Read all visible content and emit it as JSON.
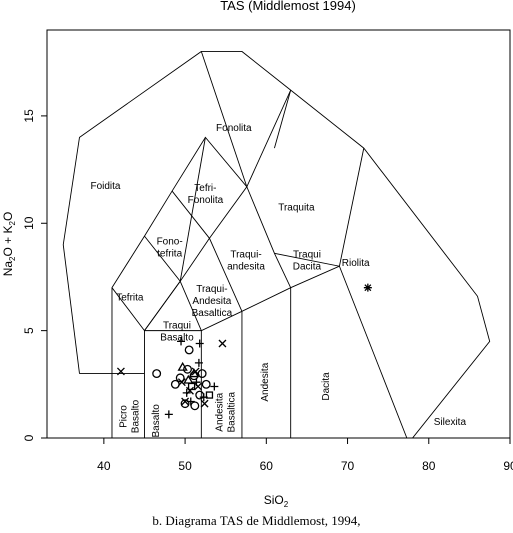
{
  "chart_data": {
    "type": "scatter",
    "title": "TAS (Middlemost 1994)",
    "xlabel_main": "SiO",
    "xlabel_sub": "2",
    "ylabel_parts": [
      "Na",
      "2",
      "O + K",
      "2",
      "O"
    ],
    "xlim": [
      33,
      90
    ],
    "ylim": [
      0,
      19
    ],
    "xticks": [
      "40",
      "50",
      "60",
      "70",
      "80",
      "90"
    ],
    "yticks": [
      "0",
      "5",
      "10",
      "15"
    ],
    "regions": [
      {
        "name": "Foidita",
        "lines": [
          "Foidita"
        ],
        "at": [
          40.2,
          11.6
        ]
      },
      {
        "name": "Fonolita",
        "lines": [
          "Fonolita"
        ],
        "at": [
          56.0,
          14.3
        ]
      },
      {
        "name": "Tefri-Fonolita",
        "lines": [
          "Tefri-",
          "Fonolita"
        ],
        "at": [
          52.5,
          11.5
        ]
      },
      {
        "name": "Traquita",
        "lines": [
          "Traquita"
        ],
        "at": [
          63.7,
          10.6
        ]
      },
      {
        "name": "Fono-tefrita",
        "lines": [
          "Fono-",
          "tefrita"
        ],
        "at": [
          48.1,
          9.0
        ]
      },
      {
        "name": "Traqui-andesita",
        "lines": [
          "Traqui-",
          "andesita"
        ],
        "at": [
          57.5,
          8.4
        ]
      },
      {
        "name": "Traqui Dacita",
        "lines": [
          "Traqui",
          "Dacita"
        ],
        "at": [
          65.0,
          8.4
        ]
      },
      {
        "name": "Riolita",
        "lines": [
          "Riolita"
        ],
        "at": [
          71.0,
          8.0
        ]
      },
      {
        "name": "Tefrita",
        "lines": [
          "Tefrita"
        ],
        "at": [
          43.2,
          6.4
        ]
      },
      {
        "name": "Traqui-Andesita Basaltica",
        "lines": [
          "Traqui-",
          "Andesita",
          "Basaltica"
        ],
        "at": [
          53.3,
          6.8
        ]
      },
      {
        "name": "Traqui Basalto",
        "lines": [
          "Traqui",
          "Basalto"
        ],
        "at": [
          49.0,
          5.1
        ]
      },
      {
        "name": "Andesita",
        "lines": [
          "Andesita"
        ],
        "at": [
          60.2,
          2.6
        ],
        "rotate": -90
      },
      {
        "name": "Dacita",
        "lines": [
          "Dacita"
        ],
        "at": [
          67.7,
          2.4
        ],
        "rotate": -90
      },
      {
        "name": "Silexita",
        "lines": [
          "Silexita"
        ],
        "at": [
          82.6,
          0.6
        ]
      },
      {
        "name": "Picro Basalto",
        "lines": [
          "Picro",
          "Basalto"
        ],
        "at": [
          42.8,
          1.0
        ],
        "rotate": -90
      },
      {
        "name": "Basalto",
        "lines": [
          "Basalto"
        ],
        "at": [
          46.8,
          0.8
        ],
        "rotate": -90
      },
      {
        "name": "Andesita Basaltica",
        "lines": [
          "Andesita",
          "Basaltica"
        ],
        "at": [
          54.6,
          1.2
        ],
        "rotate": -90
      }
    ],
    "boundaries": [
      [
        [
          37.0,
          3.0
        ],
        [
          35.0,
          9.0
        ],
        [
          37.0,
          14.0
        ],
        [
          52.0,
          18.0
        ],
        [
          57.0,
          18.0
        ],
        [
          63.0,
          16.2
        ],
        [
          72.0,
          13.5
        ],
        [
          86.0,
          6.6
        ],
        [
          87.5,
          4.5
        ],
        [
          78.0,
          0.0
        ],
        [
          41.0,
          0.0
        ],
        [
          41.0,
          3.0
        ],
        [
          37.0,
          3.0
        ]
      ],
      [
        [
          41.0,
          3.0
        ],
        [
          45.0,
          3.0
        ]
      ],
      [
        [
          41.0,
          3.0
        ],
        [
          41.0,
          7.0
        ],
        [
          45.0,
          9.4
        ],
        [
          48.4,
          11.5
        ],
        [
          52.5,
          14.0
        ],
        [
          57.6,
          11.7
        ],
        [
          63.0,
          16.2
        ]
      ],
      [
        [
          45.0,
          0.0
        ],
        [
          45.0,
          5.0
        ],
        [
          52.0,
          5.0
        ],
        [
          57.0,
          5.9
        ],
        [
          63.0,
          7.0
        ],
        [
          69.0,
          8.0
        ],
        [
          72.0,
          13.5
        ]
      ],
      [
        [
          52.0,
          0.0
        ],
        [
          52.0,
          5.0
        ],
        [
          49.4,
          7.3
        ],
        [
          53.0,
          9.3
        ],
        [
          57.6,
          11.7
        ],
        [
          52.0,
          18.0
        ]
      ],
      [
        [
          45.0,
          9.4
        ],
        [
          49.4,
          7.3
        ],
        [
          45.0,
          5.0
        ],
        [
          41.0,
          7.0
        ]
      ],
      [
        [
          48.4,
          11.5
        ],
        [
          53.0,
          9.3
        ],
        [
          57.0,
          5.9
        ],
        [
          57.0,
          0.0
        ]
      ],
      [
        [
          57.6,
          11.7
        ],
        [
          61.0,
          8.6
        ],
        [
          63.0,
          7.0
        ],
        [
          63.0,
          0.0
        ]
      ],
      [
        [
          61.0,
          8.6
        ],
        [
          69.0,
          8.0
        ],
        [
          77.3,
          0.0
        ]
      ],
      [
        [
          45.0,
          5.0
        ],
        [
          49.4,
          7.3
        ]
      ],
      [
        [
          63.0,
          16.2
        ],
        [
          61.0,
          13.5
        ]
      ],
      [
        [
          52.5,
          14.0
        ],
        [
          49.4,
          7.3
        ]
      ]
    ],
    "series": [
      {
        "marker": "circle",
        "points": [
          [
            50.5,
            4.1
          ],
          [
            46.5,
            3.0
          ],
          [
            48.8,
            2.5
          ],
          [
            49.4,
            2.8
          ],
          [
            50.3,
            3.2
          ],
          [
            51.1,
            2.9
          ],
          [
            51.8,
            2.0
          ],
          [
            50.0,
            1.6
          ],
          [
            51.2,
            1.5
          ],
          [
            52.1,
            3.0
          ],
          [
            52.6,
            2.5
          ]
        ]
      },
      {
        "marker": "plus",
        "points": [
          [
            49.5,
            4.5
          ],
          [
            51.8,
            4.4
          ],
          [
            48.0,
            1.1
          ],
          [
            50.2,
            2.1
          ],
          [
            51.4,
            2.6
          ],
          [
            50.7,
            1.7
          ],
          [
            52.3,
            1.9
          ],
          [
            53.6,
            2.4
          ],
          [
            51.7,
            3.5
          ]
        ]
      },
      {
        "marker": "cross",
        "points": [
          [
            42.1,
            3.1
          ],
          [
            54.6,
            4.4
          ],
          [
            50.0,
            1.7
          ],
          [
            50.6,
            2.2
          ],
          [
            51.6,
            2.4
          ],
          [
            52.4,
            1.6
          ],
          [
            49.6,
            2.6
          ],
          [
            51.3,
            3.1
          ]
        ]
      },
      {
        "marker": "triangle",
        "points": [
          [
            49.7,
            3.3
          ],
          [
            51.1,
            3.0
          ],
          [
            50.4,
            2.7
          ]
        ]
      },
      {
        "marker": "square",
        "points": [
          [
            53.0,
            2.0
          ],
          [
            50.8,
            2.4
          ]
        ]
      },
      {
        "marker": "asterisk",
        "points": [
          [
            72.5,
            7.0
          ]
        ]
      }
    ]
  },
  "caption": "b. Diagrama TAS de Middlemost, 1994,"
}
